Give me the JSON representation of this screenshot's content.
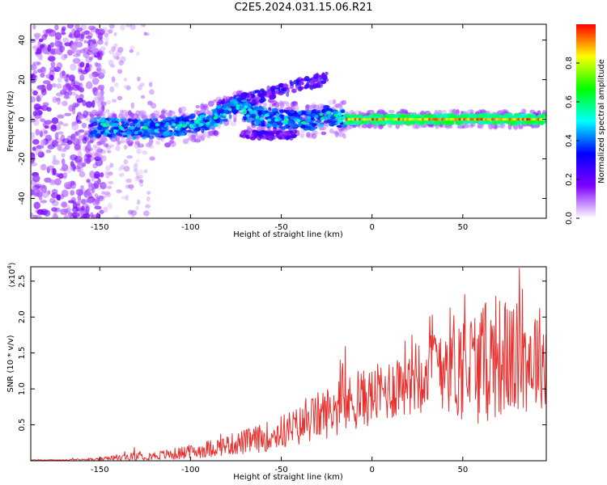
{
  "title": "C2E5.2024.031.15.06.R21",
  "chart_data": [
    {
      "type": "heatmap",
      "xlabel": "Height of straight line (km)",
      "ylabel": "Frequency (Hz)",
      "xlim": [
        -188,
        96
      ],
      "ylim": [
        -50,
        48
      ],
      "xticks": [
        -150,
        -100,
        -50,
        0,
        50
      ],
      "yticks": [
        -40,
        -20,
        0,
        20,
        40
      ],
      "colorbar": {
        "label": "Normalized spectral amplitude",
        "range": [
          0.0,
          1.0
        ],
        "ticks": [
          0.0,
          0.2,
          0.4,
          0.6,
          0.8
        ],
        "colors": [
          "#ffffff",
          "#7f00ff",
          "#0000ff",
          "#00ffff",
          "#00ff00",
          "#ffff00",
          "#ff0000"
        ]
      },
      "ridge": [
        {
          "x": -150,
          "y": -4
        },
        {
          "x": -130,
          "y": -5
        },
        {
          "x": -110,
          "y": -4
        },
        {
          "x": -90,
          "y": -1
        },
        {
          "x": -75,
          "y": 7
        },
        {
          "x": -65,
          "y": 2
        },
        {
          "x": -50,
          "y": 0
        },
        {
          "x": -35,
          "y": -1
        },
        {
          "x": -25,
          "y": 2
        },
        {
          "x": -15,
          "y": 0
        },
        {
          "x": 0,
          "y": 0
        },
        {
          "x": 50,
          "y": 0
        },
        {
          "x": 95,
          "y": 0
        }
      ]
    },
    {
      "type": "line",
      "xlabel": "Height of straight line (km)",
      "ylabel": "SNR (10 * v/v)",
      "y_multiplier": "(x10^4)",
      "xlim": [
        -188,
        96
      ],
      "ylim": [
        0,
        2.7
      ],
      "xticks": [
        -150,
        -100,
        -50,
        0,
        50
      ],
      "yticks": [
        0.5,
        1.0,
        1.5,
        2.0,
        2.5
      ],
      "color": "#e8302e",
      "series": [
        {
          "x": [
            -188,
            -170,
            -150,
            -140,
            -130,
            -120,
            -110,
            -100,
            -90,
            -80,
            -70,
            -60,
            -50,
            -40,
            -30,
            -20,
            -10,
            0,
            10,
            20,
            30,
            40,
            50,
            60,
            70,
            80,
            90,
            96
          ],
          "y": [
            0.01,
            0.01,
            0.02,
            0.04,
            0.06,
            0.07,
            0.09,
            0.12,
            0.17,
            0.22,
            0.26,
            0.32,
            0.4,
            0.48,
            0.62,
            0.72,
            0.82,
            0.9,
            1.0,
            1.2,
            1.35,
            1.45,
            1.3,
            1.35,
            1.45,
            1.4,
            1.45,
            1.45
          ],
          "spread": [
            0.005,
            0.008,
            0.02,
            0.05,
            0.06,
            0.06,
            0.08,
            0.1,
            0.12,
            0.14,
            0.18,
            0.2,
            0.24,
            0.28,
            0.34,
            0.38,
            0.4,
            0.4,
            0.45,
            0.55,
            0.7,
            0.75,
            0.8,
            0.85,
            0.85,
            0.8,
            0.75,
            0.7
          ]
        }
      ]
    }
  ]
}
